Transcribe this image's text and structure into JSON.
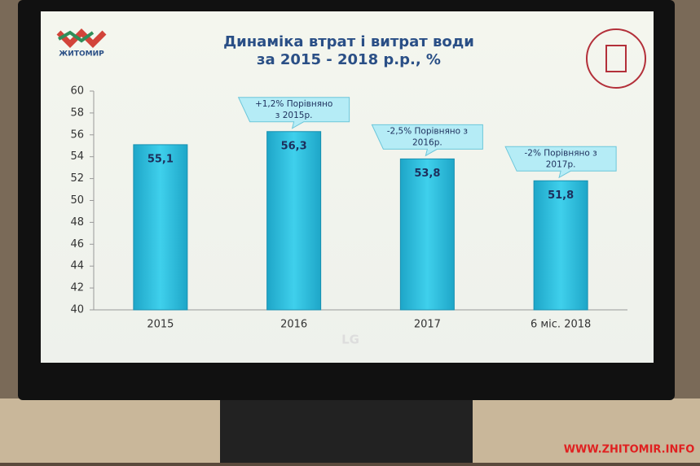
{
  "chart_data": {
    "type": "bar",
    "title": [
      "Динаміка втрат і витрат води",
      "за 2015 - 2018 р.р., %"
    ],
    "categories": [
      "2015",
      "2016",
      "2017",
      "6 міс. 2018"
    ],
    "values": [
      55.1,
      56.3,
      53.8,
      51.8
    ],
    "value_labels": [
      "55,1",
      "56,3",
      "53,8",
      "51,8"
    ],
    "color": "#27b9d8",
    "ylim": [
      40,
      60
    ],
    "yticks": [
      40,
      42,
      44,
      46,
      48,
      50,
      52,
      54,
      56,
      58,
      60
    ],
    "annotations": [
      [
        "+1,2% Порівняно",
        "з 2015р."
      ],
      [
        "-2,5% Порівняно з",
        "2016р."
      ],
      [
        "-2% Порівняно з",
        "2017р."
      ]
    ]
  },
  "screen": {
    "logo_text": "ЖИТОМИР",
    "monitor_brand": "LG",
    "watermark": "WWW.ZHITOMIR.INFO"
  }
}
